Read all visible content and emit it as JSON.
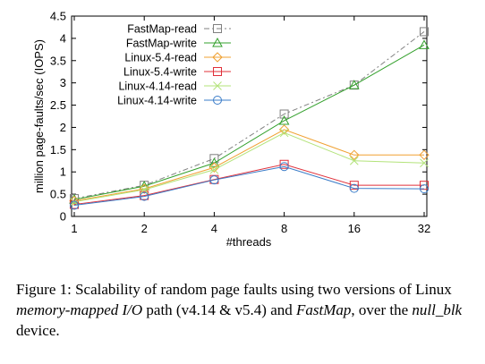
{
  "chart_data": {
    "type": "line",
    "xlabel": "#threads",
    "ylabel": "million page-faults/sec (IOPS)",
    "categories": [
      "1",
      "2",
      "4",
      "8",
      "16",
      "32"
    ],
    "ylim": [
      0,
      4.5
    ],
    "yticks": [
      "0",
      "0.5",
      "1",
      "1.5",
      "2",
      "2.5",
      "3",
      "3.5",
      "4",
      "4.5"
    ],
    "legend_position": "top-left",
    "grid": false,
    "series": [
      {
        "name": "FastMap-read",
        "values": [
          0.4,
          0.7,
          1.3,
          2.3,
          2.95,
          4.15
        ],
        "color": "#808080",
        "marker": "square",
        "dash": "6,3,2,3"
      },
      {
        "name": "FastMap-write",
        "values": [
          0.38,
          0.68,
          1.2,
          2.15,
          2.95,
          3.85
        ],
        "color": "#33a02c",
        "marker": "triangle",
        "dash": ""
      },
      {
        "name": "Linux-5.4-read",
        "values": [
          0.35,
          0.62,
          1.1,
          1.95,
          1.38,
          1.38
        ],
        "color": "#f0a030",
        "marker": "diamond",
        "dash": ""
      },
      {
        "name": "Linux-5.4-write",
        "values": [
          0.27,
          0.47,
          0.83,
          1.17,
          0.7,
          0.7
        ],
        "color": "#e0303a",
        "marker": "square",
        "dash": ""
      },
      {
        "name": "Linux-4.14-read",
        "values": [
          0.33,
          0.6,
          1.05,
          1.88,
          1.25,
          1.2
        ],
        "color": "#b3e37a",
        "marker": "x",
        "dash": ""
      },
      {
        "name": "Linux-4.14-write",
        "values": [
          0.25,
          0.45,
          0.82,
          1.12,
          0.63,
          0.62
        ],
        "color": "#3a7cc8",
        "marker": "circle",
        "dash": ""
      }
    ]
  },
  "caption": {
    "p1": "Figure 1: Scalability of random page faults using two versions of Linux ",
    "i1": "memory-mapped I/O",
    "p2": " path (v4.14 & v5.4) and ",
    "i2": "FastMap",
    "p3": ", over the ",
    "i3": "null_blk",
    "p4": " device."
  }
}
